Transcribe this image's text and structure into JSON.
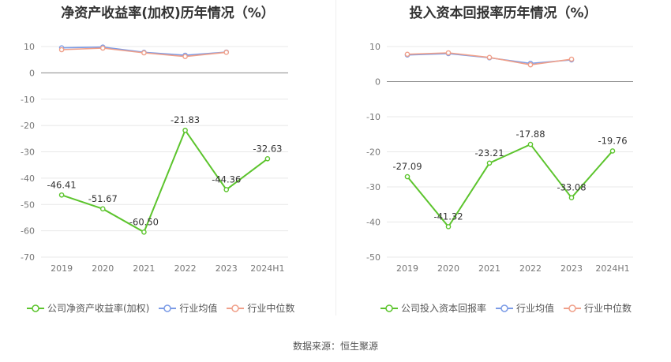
{
  "charts": [
    {
      "title": "净资产收益率(加权)历年情况（%）",
      "chart_data": {
        "type": "line",
        "categories": [
          "2019",
          "2020",
          "2021",
          "2022",
          "2023",
          "2024H1"
        ],
        "yticks": [
          10,
          0,
          -10,
          -20,
          -30,
          -40,
          -50,
          -60,
          -70
        ],
        "ylim": [
          -70,
          10
        ],
        "series": [
          {
            "name": "公司净资产收益率(加权)",
            "color": "#5cc42d",
            "values": [
              -46.41,
              -51.67,
              -60.5,
              -21.83,
              -44.36,
              -32.63
            ],
            "labels": [
              "-46.41",
              "-51.67",
              "-60.50",
              "-21.83",
              "-44.36",
              "-32.63"
            ]
          },
          {
            "name": "行业均值",
            "color": "#7b9be6",
            "values": [
              9.5,
              9.8,
              7.8,
              6.7,
              7.9,
              null
            ]
          },
          {
            "name": "行业中位数",
            "color": "#f0a08a",
            "values": [
              8.8,
              9.4,
              7.6,
              6.2,
              7.8,
              null
            ]
          }
        ]
      }
    },
    {
      "title": "投入资本回报率历年情况（%）",
      "chart_data": {
        "type": "line",
        "categories": [
          "2019",
          "2020",
          "2021",
          "2022",
          "2023",
          "2024H1"
        ],
        "yticks": [
          10,
          0,
          -10,
          -20,
          -30,
          -40,
          -50
        ],
        "ylim": [
          -50,
          10
        ],
        "series": [
          {
            "name": "公司投入资本回报率",
            "color": "#5cc42d",
            "values": [
              -27.09,
              -41.32,
              -23.21,
              -17.88,
              -33.08,
              -19.76
            ],
            "labels": [
              "-27.09",
              "-41.32",
              "-23.21",
              "-17.88",
              "-33.08",
              "-19.76"
            ]
          },
          {
            "name": "行业均值",
            "color": "#7b9be6",
            "values": [
              7.6,
              8.0,
              6.8,
              5.2,
              6.2,
              null
            ]
          },
          {
            "name": "行业中位数",
            "color": "#f0a08a",
            "values": [
              7.8,
              8.2,
              6.9,
              4.8,
              6.4,
              null
            ]
          }
        ]
      }
    }
  ],
  "source": "数据来源：恒生聚源"
}
